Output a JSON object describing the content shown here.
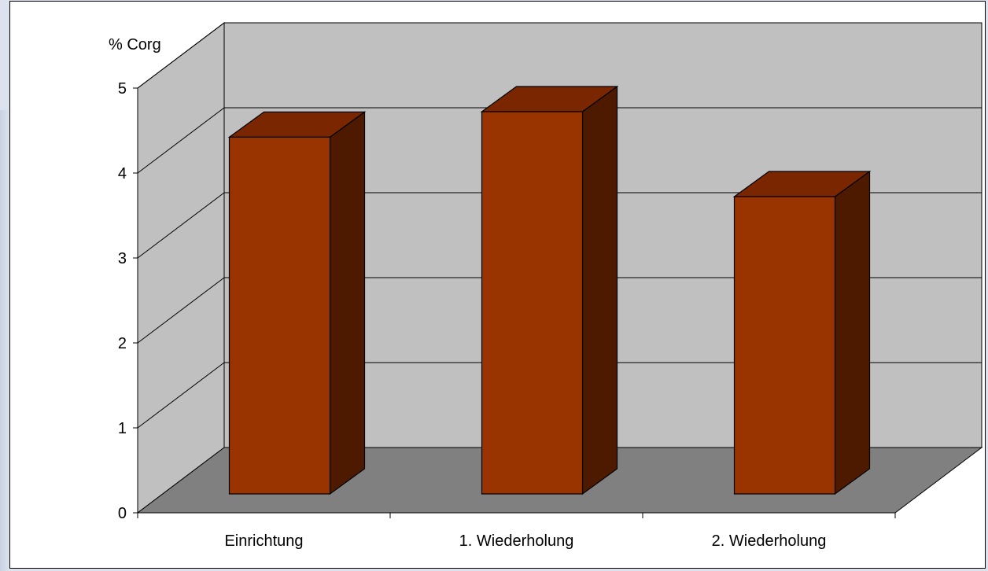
{
  "chart_data": {
    "type": "bar",
    "ylabel": "% Corg",
    "categories": [
      "Einrichtung",
      "1. Wiederholung",
      "2. Wiederholung"
    ],
    "values": [
      4.2,
      4.5,
      3.5
    ],
    "ylim": [
      0,
      5
    ],
    "yticks": [
      "0",
      "1",
      "2",
      "3",
      "4",
      "5"
    ],
    "grid": true,
    "3d": true,
    "colors": {
      "bar_front": "#993300",
      "bar_top": "#7a2600",
      "bar_side": "#4d1a00",
      "back_wall": "#c0c0c0",
      "side_wall": "#c0c0c0",
      "floor": "#808080"
    }
  }
}
